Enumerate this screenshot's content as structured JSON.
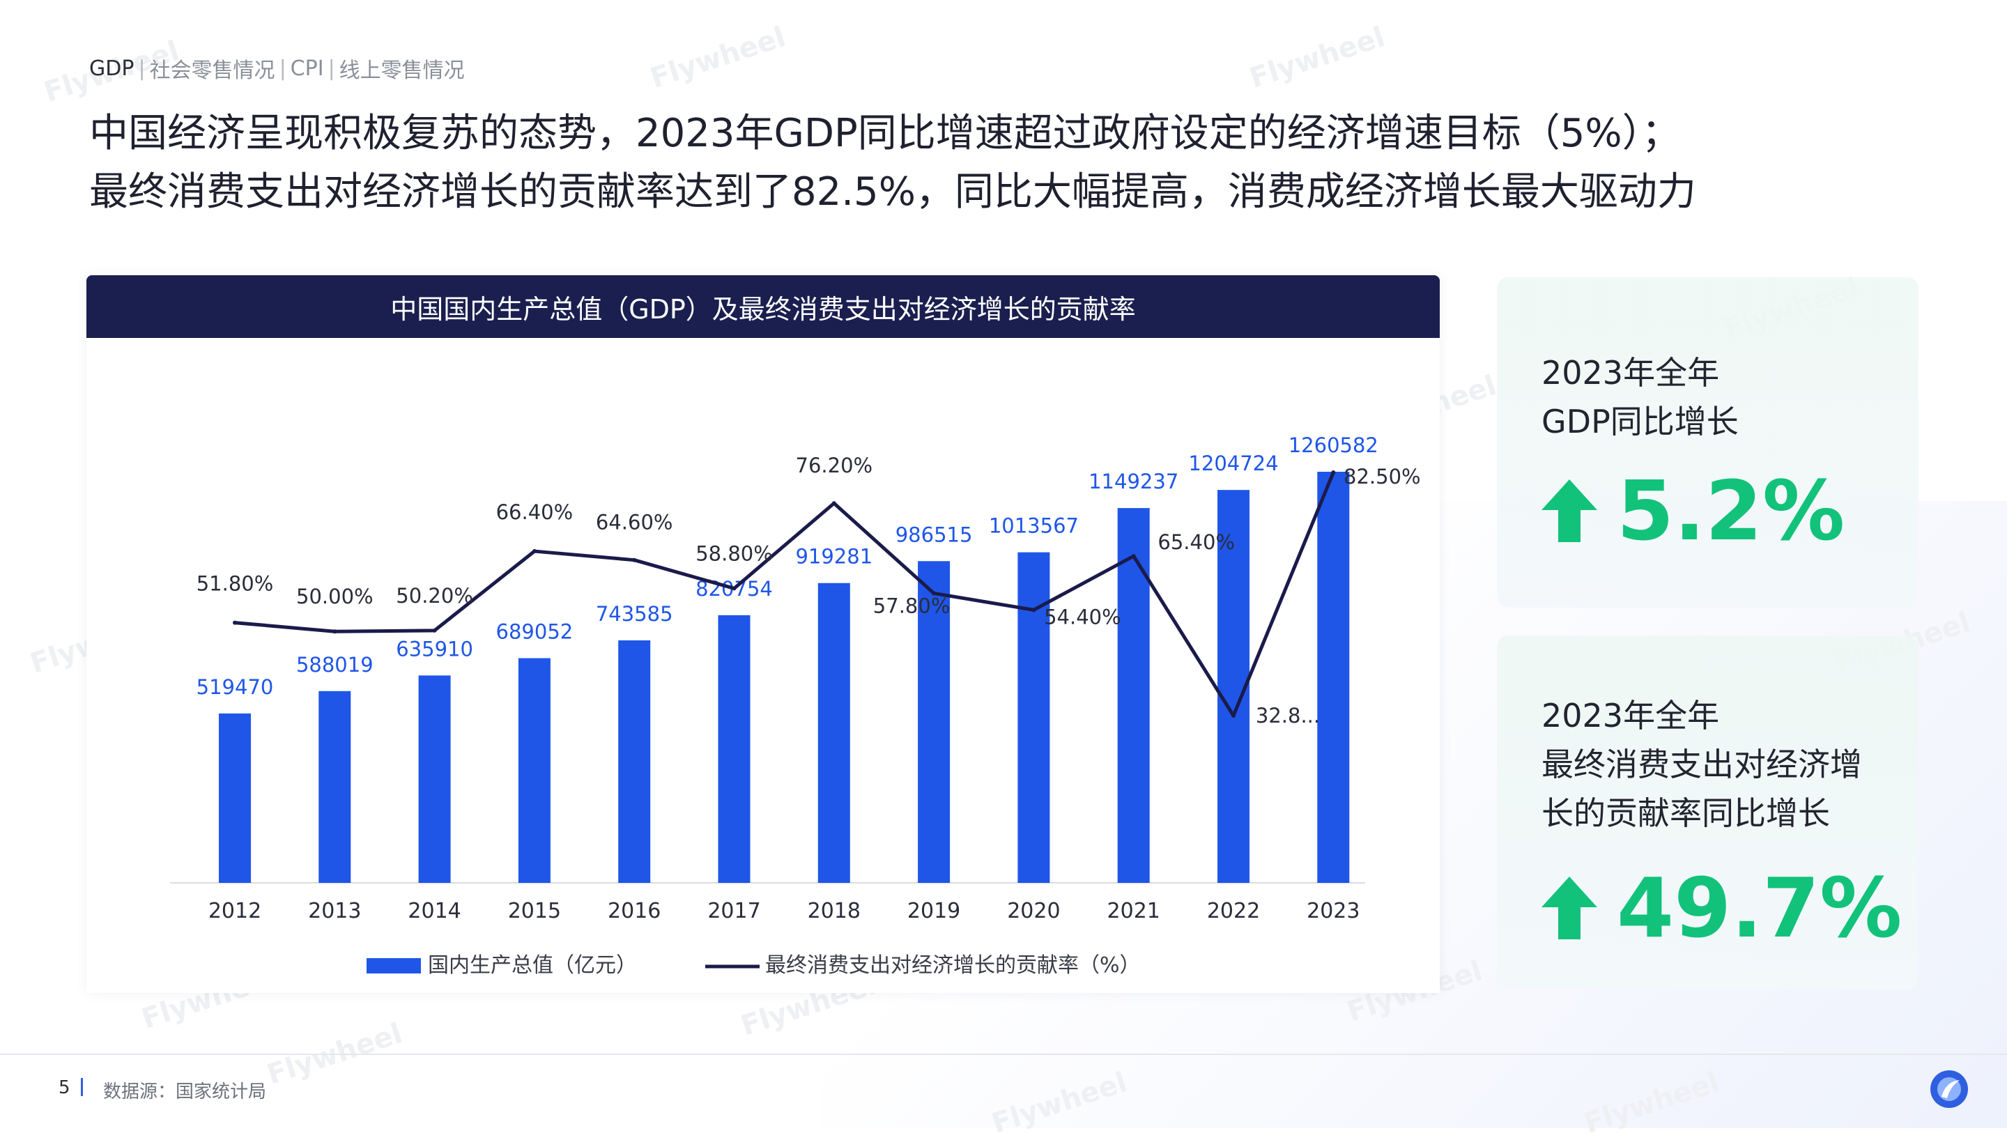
{
  "breadcrumb": {
    "items": [
      "GDP",
      "社会零售情况",
      "CPI",
      "线上零售情况"
    ],
    "separator": "|"
  },
  "headline": {
    "line1": "中国经济呈现积极复苏的态势，2023年GDP同比增速超过政府设定的经济增速目标（5%）；",
    "line2": "最终消费支出对经济增长的贡献率达到了82.5%，同比大幅提高，消费成经济增长最大驱动力"
  },
  "watermark_text": "Flywheel",
  "chart_data": {
    "type": "bar",
    "title": "中国国内生产总值（GDP）及最终消费支出对经济增长的贡献率",
    "categories": [
      "2012",
      "2013",
      "2014",
      "2015",
      "2016",
      "2017",
      "2018",
      "2019",
      "2020",
      "2021",
      "2022",
      "2023"
    ],
    "series": [
      {
        "name": "国内生产总值（亿元）",
        "type": "bar",
        "color": "#1f56e8",
        "values": [
          519470,
          588019,
          635910,
          689052,
          743585,
          820754,
          919281,
          986515,
          1013567,
          1149237,
          1204724,
          1260582
        ],
        "labels": [
          "519470",
          "588019",
          "635910",
          "689052",
          "743585",
          "820754",
          "919281",
          "986515",
          "1013567",
          "1149237",
          "1204724",
          "1260582"
        ]
      },
      {
        "name": "最终消费支出对经济增长的贡献率（%）",
        "type": "line",
        "color": "#1a1b4b",
        "values": [
          51.8,
          50.0,
          50.2,
          66.4,
          64.6,
          58.8,
          76.2,
          57.8,
          54.4,
          65.4,
          32.8,
          82.5
        ],
        "labels": [
          "51.80%",
          "50.00%",
          "50.20%",
          "66.40%",
          "64.60%",
          "58.80%",
          "76.20%",
          "57.80%",
          "54.40%",
          "65.40%",
          "32.8...",
          "82.50%"
        ]
      }
    ],
    "legend_position": "bottom",
    "grid": false
  },
  "kpis": [
    {
      "label_lines": [
        "2023年全年",
        "GDP同比增长"
      ],
      "value": "5.2%",
      "icon": "up-arrow-icon"
    },
    {
      "label_lines": [
        "2023年全年",
        "最终消费支出对经济增",
        "长的贡献率同比增长"
      ],
      "value": "49.7%",
      "icon": "up-arrow-icon"
    }
  ],
  "footer": {
    "page_number": "5",
    "source": "数据源：国家统计局"
  },
  "colors": {
    "bar": "#1f56e8",
    "line": "#1a1b4b",
    "title_bar": "#1a1f4f",
    "kpi_green": "#12c27a",
    "accent_blue": "#2f5fe0"
  }
}
